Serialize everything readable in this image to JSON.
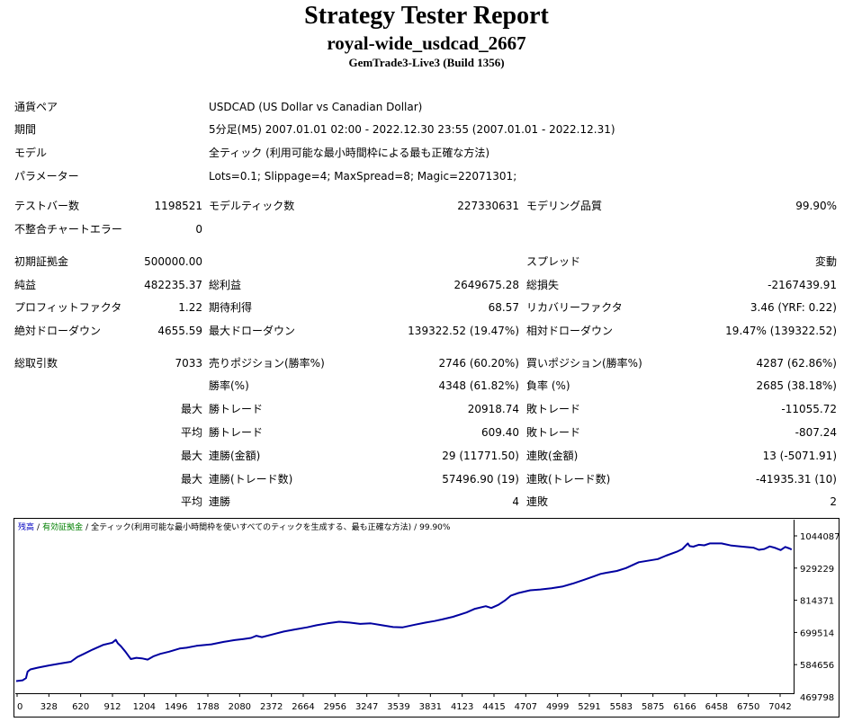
{
  "header": {
    "title": "Strategy Tester Report",
    "subtitle": "royal-wide_usdcad_2667",
    "build": "GemTrade3-Live3 (Build 1356)"
  },
  "info": {
    "symbol_label": "通貨ペア",
    "symbol_value": "USDCAD (US Dollar vs Canadian Dollar)",
    "period_label": "期間",
    "period_value": "5分足(M5) 2007.01.01 02:00 - 2022.12.30 23:55 (2007.01.01 - 2022.12.31)",
    "model_label": "モデル",
    "model_value": "全ティック (利用可能な最小時間枠による最も正確な方法)",
    "params_label": "パラメーター",
    "params_value": "Lots=0.1; Slippage=4; MaxSpread=8; Magic=22071301;"
  },
  "stats": {
    "bars_label": "テストバー数",
    "bars_value": "1198521",
    "ticks_label": "モデルティック数",
    "ticks_value": "227330631",
    "quality_label": "モデリング品質",
    "quality_value": "99.90%",
    "mismatch_label": "不整合チャートエラー",
    "mismatch_value": "0",
    "deposit_label": "初期証拠金",
    "deposit_value": "500000.00",
    "spread_label": "スプレッド",
    "spread_value": "変動",
    "net_label": "純益",
    "net_value": "482235.37",
    "gross_profit_label": "総利益",
    "gross_profit_value": "2649675.28",
    "gross_loss_label": "総損失",
    "gross_loss_value": "-2167439.91",
    "pf_label": "プロフィットファクタ",
    "pf_value": "1.22",
    "expected_label": "期待利得",
    "expected_value": "68.57",
    "recovery_label": "リカバリーファクタ",
    "recovery_value": "3.46 (YRF: 0.22)",
    "abs_dd_label": "絶対ドローダウン",
    "abs_dd_value": "4655.59",
    "max_dd_label": "最大ドローダウン",
    "max_dd_value": "139322.52 (19.47%)",
    "rel_dd_label": "相対ドローダウン",
    "rel_dd_value": "19.47% (139322.52)",
    "trades_label": "総取引数",
    "trades_value": "7033",
    "short_label": "売りポジション(勝率%)",
    "short_value": "2746 (60.20%)",
    "long_label": "買いポジション(勝率%)",
    "long_value": "4287 (62.86%)",
    "win_label": "勝率(%)",
    "win_value": "4348 (61.82%)",
    "loss_label": "負率 (%)",
    "loss_value": "2685 (38.18%)",
    "largest_prefix": "最大",
    "largest_win_label": "勝トレード",
    "largest_win_value": "20918.74",
    "largest_loss_label": "敗トレード",
    "largest_loss_value": "-11055.72",
    "average_prefix": "平均",
    "avg_win_label": "勝トレード",
    "avg_win_value": "609.40",
    "avg_loss_label": "敗トレード",
    "avg_loss_value": "-807.24",
    "max_cons_prefix": "最大",
    "max_cons_wins_label": "連勝(金額)",
    "max_cons_wins_value": "29 (11771.50)",
    "max_cons_losses_label": "連敗(金額)",
    "max_cons_losses_value": "13 (-5071.91)",
    "max_cons_profit_prefix": "最大",
    "max_cons_profit_label": "連勝(トレード数)",
    "max_cons_profit_value": "57496.90 (19)",
    "max_cons_loss_label": "連敗(トレード数)",
    "max_cons_loss_value": "-41935.31 (10)",
    "avg_cons_prefix": "平均",
    "avg_cons_wins_label": "連勝",
    "avg_cons_wins_value": "4",
    "avg_cons_losses_label": "連敗",
    "avg_cons_losses_value": "2"
  },
  "chart_data": {
    "type": "line",
    "legend": {
      "balance": "残高",
      "equity": "有効証拠金",
      "model": "全ティック(利用可能な最小時間枠を使いすべてのティックを生成する、最も正確な方法)",
      "quality": "99.90%",
      "sep": "/"
    },
    "x_ticks": [
      "0",
      "328",
      "620",
      "912",
      "1204",
      "1496",
      "1788",
      "2080",
      "2372",
      "2664",
      "2956",
      "3247",
      "3539",
      "3831",
      "4123",
      "4415",
      "4707",
      "4999",
      "5291",
      "5583",
      "5875",
      "6166",
      "6458",
      "6750",
      "7042"
    ],
    "y_ticks": [
      "1044087",
      "929229",
      "814371",
      "699514",
      "584656",
      "469798"
    ],
    "xlim": [
      0,
      7110
    ],
    "ylim": [
      469798,
      1044087
    ],
    "series": [
      {
        "color": "#0000a0",
        "x": [
          0,
          60,
          90,
          105,
          130,
          200,
          300,
          400,
          500,
          560,
          620,
          700,
          800,
          880,
          912,
          930,
          960,
          1000,
          1050,
          1100,
          1150,
          1204,
          1260,
          1320,
          1400,
          1496,
          1560,
          1650,
          1788,
          1900,
          2000,
          2080,
          2150,
          2200,
          2250,
          2372,
          2450,
          2550,
          2664,
          2750,
          2850,
          2956,
          3050,
          3150,
          3247,
          3350,
          3450,
          3539,
          3650,
          3750,
          3831,
          3900,
          4000,
          4123,
          4200,
          4300,
          4350,
          4415,
          4480,
          4530,
          4600,
          4707,
          4800,
          4900,
          4999,
          5100,
          5200,
          5291,
          5350,
          5400,
          5500,
          5583,
          5700,
          5875,
          5950,
          6050,
          6100,
          6130,
          6150,
          6166,
          6200,
          6250,
          6300,
          6350,
          6458,
          6550,
          6650,
          6750,
          6800,
          6850,
          6900,
          6950,
          7000,
          7042,
          7080,
          7100
        ],
        "y": [
          509000,
          512000,
          520000,
          545000,
          553000,
          560000,
          568000,
          575000,
          582000,
          600000,
          612000,
          628000,
          646000,
          654000,
          665000,
          652000,
          640000,
          620000,
          592000,
          597000,
          595000,
          590000,
          603000,
          612000,
          620000,
          632000,
          635000,
          642000,
          648000,
          657000,
          664000,
          668000,
          672000,
          680000,
          675000,
          688000,
          696000,
          704000,
          712000,
          720000,
          727000,
          733000,
          730000,
          725000,
          727000,
          720000,
          713000,
          712000,
          722000,
          730000,
          736000,
          742000,
          752000,
          768000,
          782000,
          792000,
          785000,
          797000,
          815000,
          832000,
          842000,
          852000,
          855000,
          860000,
          866000,
          878000,
          892000,
          905000,
          914000,
          918000,
          925000,
          936000,
          958000,
          970000,
          983000,
          998000,
          1008000,
          1021000,
          1029000,
          1019000,
          1017000,
          1024000,
          1022000,
          1029000,
          1029000,
          1021000,
          1017000,
          1013000,
          1005000,
          1008000,
          1018000,
          1012000,
          1004000,
          1016000,
          1010000,
          1006000
        ]
      }
    ]
  }
}
